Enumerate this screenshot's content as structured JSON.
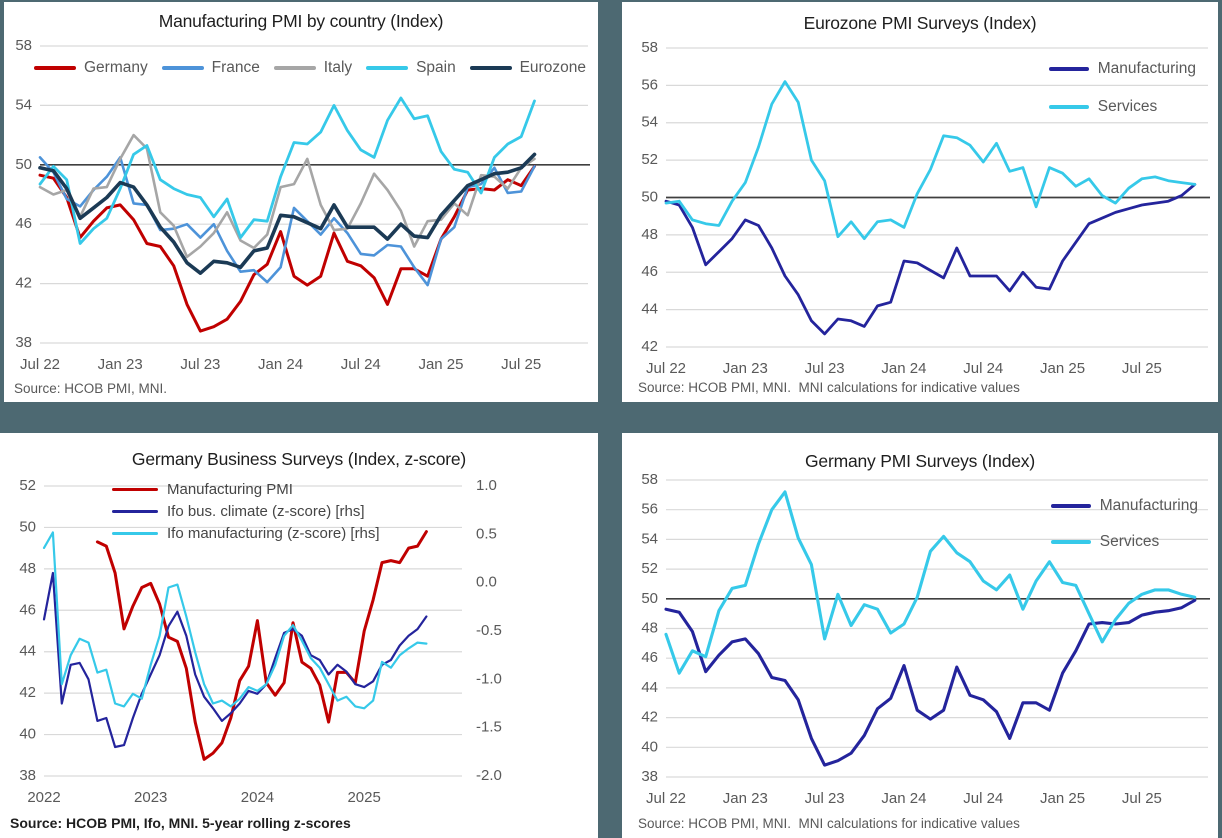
{
  "page": {
    "background": "#4D6972",
    "panel_background": "#ffffff"
  },
  "chart_data": [
    {
      "id": "manufacturing-pmi-by-country",
      "type": "line",
      "title": "Manufacturing PMI by country (Index)",
      "source": "Source: HCOB PMI, MNI.",
      "y_axis": {
        "min": 38,
        "max": 58,
        "step": 4
      },
      "ref_value": 50,
      "x_slots": 42,
      "x_ticks": [
        {
          "label": "Jul 22",
          "i": 0
        },
        {
          "label": "Jan 23",
          "i": 6
        },
        {
          "label": "Jul 23",
          "i": 12
        },
        {
          "label": "Jan 24",
          "i": 18
        },
        {
          "label": "Jul 24",
          "i": 24
        },
        {
          "label": "Jan 25",
          "i": 30
        },
        {
          "label": "Jul 25",
          "i": 36
        }
      ],
      "grid_color": "#D9D9D9",
      "ref_color": "#3F3F3F",
      "series": [
        {
          "name": "Germany",
          "color": "#C00000",
          "width": 3,
          "values": [
            49.3,
            49.1,
            47.8,
            45.1,
            46.2,
            47.1,
            47.3,
            46.3,
            44.7,
            44.5,
            43.2,
            40.6,
            38.8,
            39.1,
            39.6,
            40.8,
            42.6,
            43.3,
            45.5,
            42.5,
            41.9,
            42.5,
            45.4,
            43.5,
            43.2,
            42.4,
            40.6,
            43.0,
            43.0,
            42.5,
            45.0,
            46.5,
            48.3,
            48.4,
            48.3,
            49.0,
            48.6,
            49.9
          ]
        },
        {
          "name": "France",
          "color": "#4D93D9",
          "width": 2.6,
          "values": [
            50.5,
            49.5,
            47.7,
            47.2,
            48.3,
            49.2,
            50.5,
            47.4,
            47.3,
            45.6,
            45.7,
            46.0,
            45.1,
            46.0,
            44.2,
            42.8,
            42.9,
            42.1,
            43.1,
            47.1,
            46.2,
            45.3,
            46.4,
            45.4,
            44.0,
            43.9,
            44.6,
            44.5,
            43.1,
            41.9,
            45.0,
            45.8,
            48.5,
            48.7,
            49.8,
            48.1,
            48.2,
            49.9
          ]
        },
        {
          "name": "Italy",
          "color": "#A6A6A6",
          "width": 2.6,
          "values": [
            48.5,
            48.0,
            48.3,
            46.5,
            48.4,
            48.5,
            50.4,
            52.0,
            51.1,
            46.8,
            45.9,
            43.8,
            44.5,
            45.4,
            46.8,
            44.9,
            44.4,
            45.3,
            48.5,
            48.7,
            50.4,
            47.3,
            45.6,
            45.7,
            47.4,
            49.4,
            48.3,
            46.9,
            44.5,
            46.2,
            46.3,
            47.4,
            46.6,
            49.3,
            49.2,
            48.4,
            49.8,
            50.4
          ]
        },
        {
          "name": "Spain",
          "color": "#36C9E9",
          "width": 2.8,
          "values": [
            48.7,
            49.9,
            49.0,
            44.7,
            45.7,
            46.4,
            48.4,
            50.7,
            51.3,
            49.0,
            48.4,
            48.0,
            47.8,
            46.5,
            47.7,
            45.1,
            46.3,
            46.2,
            49.2,
            51.5,
            51.4,
            52.2,
            54.0,
            52.3,
            51.0,
            50.5,
            53.0,
            54.5,
            53.1,
            53.3,
            50.9,
            49.7,
            49.5,
            48.1,
            50.5,
            51.4,
            51.9,
            54.3
          ]
        },
        {
          "name": "Eurozone",
          "color": "#1B3A55",
          "width": 3.6,
          "values": [
            49.8,
            49.6,
            48.4,
            46.4,
            47.1,
            47.8,
            48.8,
            48.5,
            47.3,
            45.8,
            44.8,
            43.4,
            42.7,
            43.5,
            43.4,
            43.1,
            44.2,
            44.4,
            46.6,
            46.5,
            46.1,
            45.7,
            47.3,
            45.8,
            45.8,
            45.8,
            45.0,
            46.0,
            45.2,
            45.1,
            46.6,
            47.6,
            48.6,
            49.0,
            49.4,
            49.5,
            49.8,
            50.7
          ]
        }
      ]
    },
    {
      "id": "eurozone-pmi-surveys",
      "type": "line",
      "title": "Eurozone PMI Surveys (Index)",
      "source": "Source: HCOB PMI, MNI.  MNI calculations for indicative values",
      "y_axis": {
        "min": 42,
        "max": 58,
        "step": 2
      },
      "ref_value": 50,
      "x_slots": 42,
      "x_ticks": [
        {
          "label": "Jul 22",
          "i": 0
        },
        {
          "label": "Jan 23",
          "i": 6
        },
        {
          "label": "Jul 23",
          "i": 12
        },
        {
          "label": "Jan 24",
          "i": 18
        },
        {
          "label": "Jul 24",
          "i": 24
        },
        {
          "label": "Jan 25",
          "i": 30
        },
        {
          "label": "Jul 25",
          "i": 36
        }
      ],
      "grid_color": "#D9D9D9",
      "ref_color": "#3F3F3F",
      "series": [
        {
          "name": "Manufacturing",
          "color": "#24249C",
          "width": 2.8,
          "values": [
            49.8,
            49.6,
            48.4,
            46.4,
            47.1,
            47.8,
            48.8,
            48.5,
            47.3,
            45.8,
            44.8,
            43.4,
            42.7,
            43.5,
            43.4,
            43.1,
            44.2,
            44.4,
            46.6,
            46.5,
            46.1,
            45.7,
            47.3,
            45.8,
            45.8,
            45.8,
            45.0,
            46.0,
            45.2,
            45.1,
            46.6,
            47.6,
            48.6,
            48.9,
            49.2,
            49.4,
            49.6,
            49.7,
            49.8,
            50.1,
            50.7
          ]
        },
        {
          "name": "Services",
          "color": "#36C9E9",
          "width": 2.8,
          "values": [
            49.7,
            49.8,
            48.8,
            48.6,
            48.5,
            49.8,
            50.8,
            52.7,
            55.0,
            56.2,
            55.1,
            52.0,
            50.9,
            47.9,
            48.7,
            47.8,
            48.7,
            48.8,
            48.4,
            50.2,
            51.5,
            53.3,
            53.2,
            52.8,
            51.9,
            52.9,
            51.4,
            51.6,
            49.5,
            51.6,
            51.3,
            50.6,
            51.0,
            50.1,
            49.7,
            50.5,
            51.0,
            51.1,
            50.9,
            50.8,
            50.7
          ]
        }
      ]
    },
    {
      "id": "germany-business-surveys",
      "type": "line",
      "title": "Germany Business Surveys (Index, z-score)",
      "source": "Source: HCOB PMI, Ifo, MNI. 5-year rolling z-scores",
      "y_axis": {
        "min": 38,
        "max": 52,
        "step": 2
      },
      "y2_axis": {
        "min": -2.0,
        "max": 1.0,
        "step": 0.5
      },
      "ref_value": null,
      "x_slots": 48,
      "x_ticks": [
        {
          "label": "2022",
          "i": 0
        },
        {
          "label": "2023",
          "i": 12
        },
        {
          "label": "2024",
          "i": 24
        },
        {
          "label": "2025",
          "i": 36
        }
      ],
      "grid_color": "#D9D9D9",
      "ref_color": "#3F3F3F",
      "series": [
        {
          "name": "Manufacturing PMI",
          "color": "#C00000",
          "width": 3,
          "axis": "y",
          "values": [
            null,
            null,
            null,
            null,
            null,
            null,
            49.3,
            49.1,
            47.8,
            45.1,
            46.2,
            47.1,
            47.3,
            46.3,
            44.7,
            44.5,
            43.2,
            40.6,
            38.8,
            39.1,
            39.6,
            40.8,
            42.6,
            43.3,
            45.5,
            42.5,
            41.9,
            42.5,
            45.4,
            43.5,
            43.2,
            42.4,
            40.6,
            43.0,
            43.0,
            42.5,
            45.0,
            46.5,
            48.3,
            48.4,
            48.3,
            49.0,
            49.1,
            49.8
          ]
        },
        {
          "name": "Ifo bus. climate (z-score) [rhs]",
          "color": "#24249C",
          "width": 2.2,
          "axis": "y2",
          "values": [
            -0.38,
            0.1,
            -1.25,
            -0.85,
            -0.83,
            -1.0,
            -1.43,
            -1.4,
            -1.7,
            -1.68,
            -1.4,
            -1.15,
            -0.95,
            -0.75,
            -0.45,
            -0.3,
            -0.55,
            -0.95,
            -1.18,
            -1.3,
            -1.43,
            -1.35,
            -1.25,
            -1.12,
            -1.15,
            -1.05,
            -0.78,
            -0.52,
            -0.48,
            -0.55,
            -0.75,
            -0.8,
            -0.95,
            -0.85,
            -0.92,
            -1.05,
            -1.08,
            -1.02,
            -0.85,
            -0.8,
            -0.65,
            -0.55,
            -0.48,
            -0.35
          ]
        },
        {
          "name": "Ifo manufacturing (z-score) [rhs]",
          "color": "#36C9E9",
          "width": 2.2,
          "axis": "y2",
          "values": [
            0.36,
            0.52,
            -1.05,
            -0.75,
            -0.58,
            -0.62,
            -0.93,
            -0.9,
            -1.25,
            -1.28,
            -1.15,
            -1.2,
            -0.85,
            -0.55,
            -0.05,
            -0.02,
            -0.35,
            -0.72,
            -1.05,
            -1.25,
            -1.22,
            -1.28,
            -1.2,
            -1.08,
            -1.12,
            -1.05,
            -0.85,
            -0.55,
            -0.44,
            -0.6,
            -0.78,
            -0.88,
            -1.05,
            -1.22,
            -1.18,
            -1.28,
            -1.3,
            -1.22,
            -0.82,
            -0.88,
            -0.75,
            -0.68,
            -0.62,
            -0.63
          ]
        }
      ]
    },
    {
      "id": "germany-pmi-surveys",
      "type": "line",
      "title": "Germany PMI Surveys (Index)",
      "source": "Source: HCOB PMI, MNI.  MNI calculations for indicative values",
      "y_axis": {
        "min": 38,
        "max": 58,
        "step": 2
      },
      "ref_value": 50,
      "x_slots": 42,
      "x_ticks": [
        {
          "label": "Jul 22",
          "i": 0
        },
        {
          "label": "Jan 23",
          "i": 6
        },
        {
          "label": "Jul 23",
          "i": 12
        },
        {
          "label": "Jan 24",
          "i": 18
        },
        {
          "label": "Jul 24",
          "i": 24
        },
        {
          "label": "Jan 25",
          "i": 30
        },
        {
          "label": "Jul 25",
          "i": 36
        }
      ],
      "grid_color": "#D9D9D9",
      "ref_color": "#3F3F3F",
      "series": [
        {
          "name": "Manufacturing",
          "color": "#24249C",
          "width": 3.1,
          "values": [
            49.3,
            49.1,
            47.8,
            45.1,
            46.2,
            47.1,
            47.3,
            46.3,
            44.7,
            44.5,
            43.2,
            40.6,
            38.8,
            39.1,
            39.6,
            40.8,
            42.6,
            43.3,
            45.5,
            42.5,
            41.9,
            42.5,
            45.4,
            43.5,
            43.2,
            42.4,
            40.6,
            43.0,
            43.0,
            42.5,
            45.0,
            46.5,
            48.3,
            48.4,
            48.3,
            48.4,
            48.9,
            49.1,
            49.2,
            49.4,
            49.9
          ]
        },
        {
          "name": "Services",
          "color": "#36C9E9",
          "width": 3.1,
          "values": [
            47.6,
            45.0,
            46.5,
            46.1,
            49.2,
            50.7,
            50.9,
            53.7,
            56.0,
            57.2,
            54.1,
            52.3,
            47.3,
            50.3,
            48.2,
            49.6,
            49.3,
            47.7,
            48.3,
            50.1,
            53.2,
            54.2,
            53.1,
            52.5,
            51.2,
            50.6,
            51.6,
            49.3,
            51.2,
            52.5,
            51.1,
            50.9,
            49.0,
            47.1,
            48.6,
            49.7,
            50.3,
            50.6,
            50.6,
            50.3,
            50.1
          ]
        }
      ]
    }
  ]
}
